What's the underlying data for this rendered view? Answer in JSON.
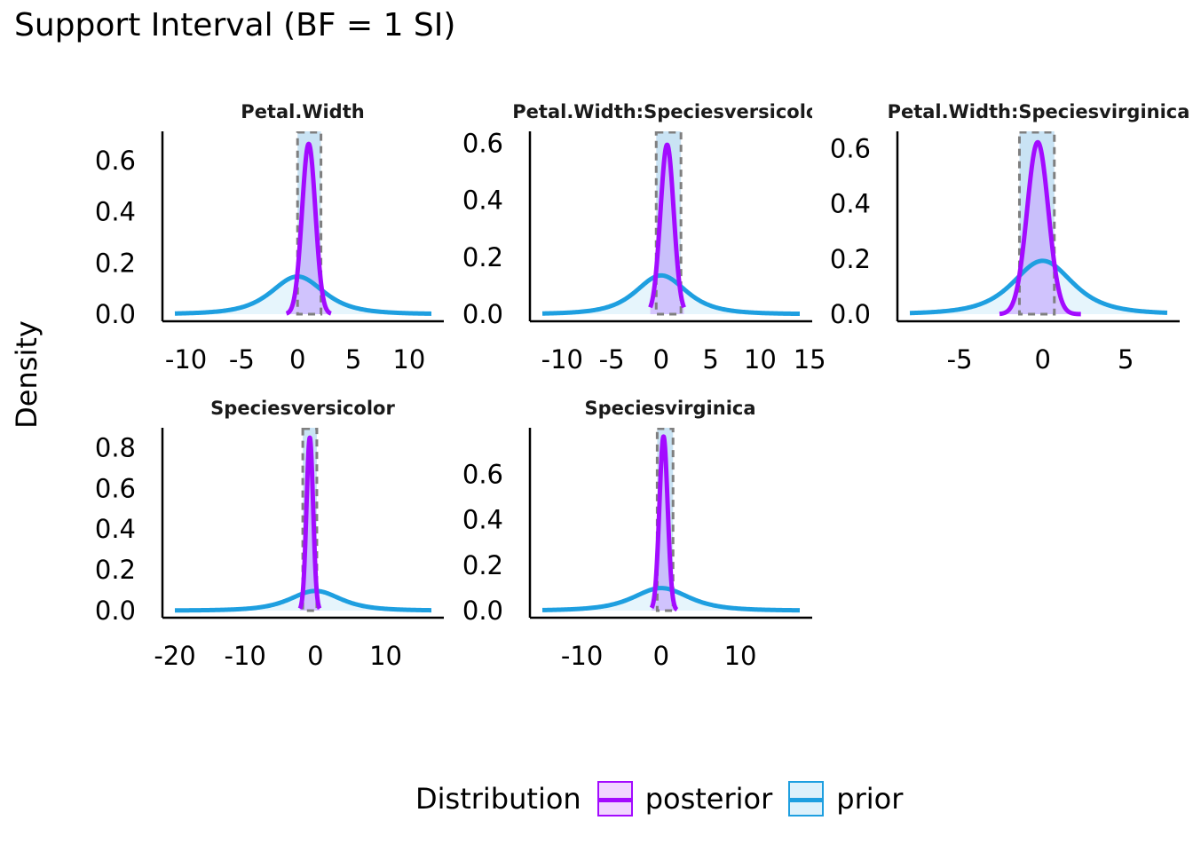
{
  "title": "Support Interval (BF = 1 SI)",
  "ylabel": "Density",
  "colors": {
    "posterior_line": "#A30BFF",
    "posterior_fill": "#DDB6FF",
    "prior_line": "#1E9FE0",
    "prior_fill": "#DDF1FB",
    "si_fill": "#B7DAF0",
    "si_border": "#7F7F7F"
  },
  "legend": {
    "title": "Distribution",
    "items": [
      {
        "label": "posterior",
        "key": "posterior"
      },
      {
        "label": "prior",
        "key": "prior"
      }
    ]
  },
  "chart_data": [
    {
      "type": "area",
      "title": "Petal.Width",
      "xlim": [
        -11,
        12
      ],
      "ylim": [
        0,
        0.7
      ],
      "xticks": [
        -10,
        -5,
        0,
        5,
        10
      ],
      "yticks": [
        0.0,
        0.2,
        0.4,
        0.6
      ],
      "si": [
        0,
        2.1
      ],
      "series": [
        {
          "name": "prior",
          "dist": "t",
          "mean": 0,
          "scale": 2.5,
          "df": 3,
          "range": [
            -11,
            12
          ]
        },
        {
          "name": "posterior",
          "dist": "normal",
          "mean": 1.0,
          "sd": 0.6,
          "range": [
            -1,
            3
          ]
        }
      ]
    },
    {
      "type": "area",
      "title": "Petal.Width:Speciesversicolor",
      "xlim": [
        -12,
        14
      ],
      "ylim": [
        0,
        0.63
      ],
      "xticks": [
        -10,
        -5,
        0,
        5,
        10,
        15
      ],
      "yticks": [
        0.0,
        0.2,
        0.4,
        0.6
      ],
      "si": [
        -0.5,
        2.0
      ],
      "series": [
        {
          "name": "prior",
          "dist": "t",
          "mean": 0,
          "scale": 2.7,
          "df": 3,
          "range": [
            -12,
            14
          ]
        },
        {
          "name": "posterior",
          "dist": "normal",
          "mean": 0.6,
          "sd": 0.67,
          "range": [
            -1.1,
            2.3
          ]
        }
      ]
    },
    {
      "type": "area",
      "title": "Petal.Width:Speciesvirginica",
      "xlim": [
        -8,
        7.5
      ],
      "ylim": [
        0,
        0.65
      ],
      "xticks": [
        -5,
        0,
        5
      ],
      "yticks": [
        0.0,
        0.2,
        0.4,
        0.6
      ],
      "si": [
        -1.4,
        0.7
      ],
      "series": [
        {
          "name": "prior",
          "dist": "t",
          "mean": 0,
          "scale": 1.9,
          "df": 3,
          "range": [
            -8,
            7.5
          ]
        },
        {
          "name": "posterior",
          "dist": "normal",
          "mean": -0.3,
          "sd": 0.64,
          "range": [
            -2.6,
            2.3
          ]
        }
      ]
    },
    {
      "type": "area",
      "title": "Speciesversicolor",
      "xlim": [
        -20,
        16.5
      ],
      "ylim": [
        0,
        0.88
      ],
      "xticks": [
        -20,
        -10,
        0,
        10
      ],
      "yticks": [
        0.0,
        0.2,
        0.4,
        0.6,
        0.8
      ],
      "si": [
        -1.8,
        0.2
      ],
      "series": [
        {
          "name": "prior",
          "dist": "t",
          "mean": 0,
          "scale": 3.8,
          "df": 3,
          "range": [
            -20,
            16.5
          ]
        },
        {
          "name": "posterior",
          "dist": "normal",
          "mean": -0.8,
          "sd": 0.47,
          "range": [
            -2.2,
            0.6
          ]
        }
      ]
    },
    {
      "type": "area",
      "title": "Speciesvirginica",
      "xlim": [
        -15,
        17.5
      ],
      "ylim": [
        0,
        0.79
      ],
      "xticks": [
        -10,
        0,
        10
      ],
      "yticks": [
        0.0,
        0.2,
        0.4,
        0.6
      ],
      "si": [
        -0.5,
        1.5
      ],
      "series": [
        {
          "name": "prior",
          "dist": "t",
          "mean": 0,
          "scale": 3.7,
          "df": 3,
          "range": [
            -15,
            17.5
          ]
        },
        {
          "name": "posterior",
          "dist": "normal",
          "mean": 0.3,
          "sd": 0.52,
          "range": [
            -1.2,
            2.0
          ]
        }
      ]
    }
  ]
}
